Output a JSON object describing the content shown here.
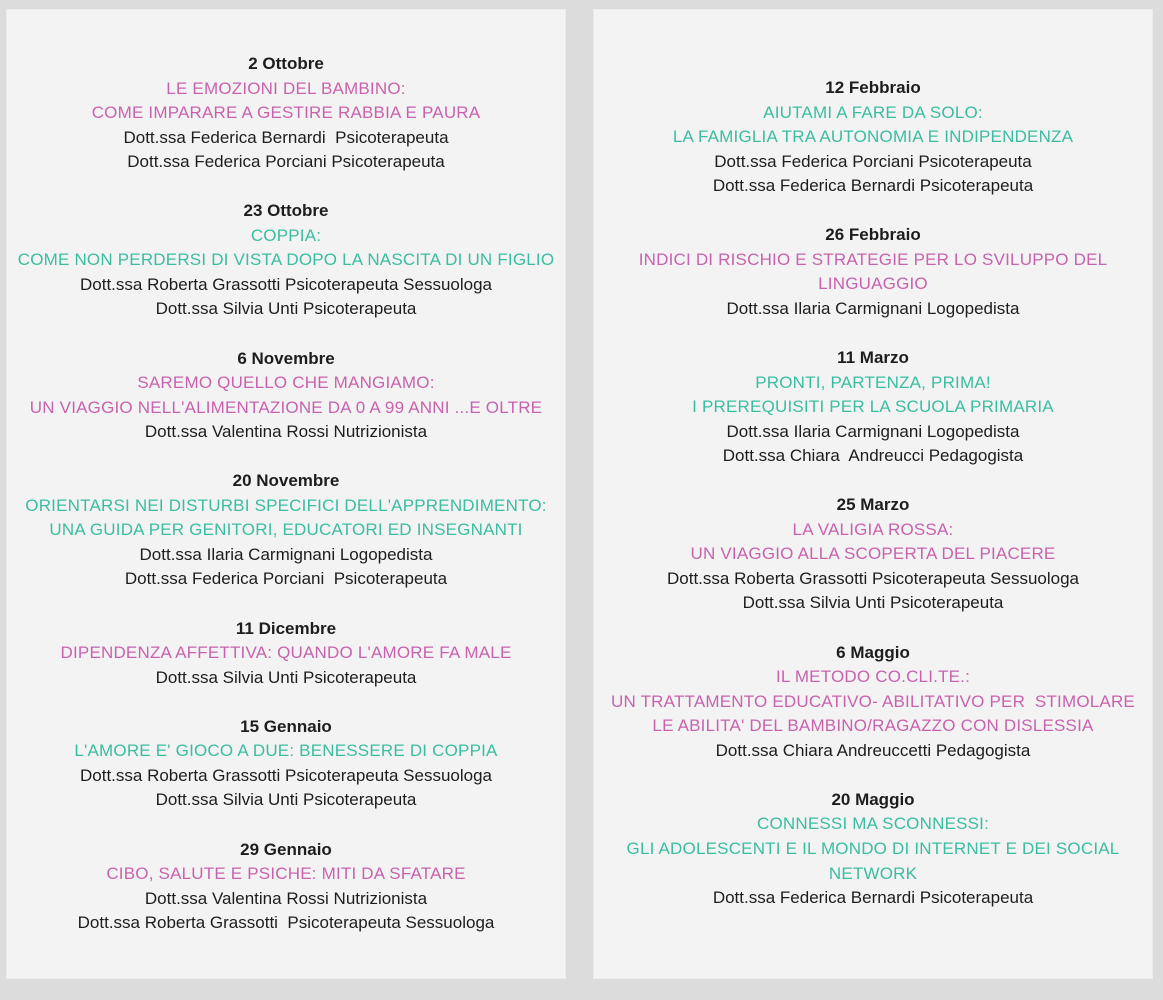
{
  "colors": {
    "page_background": "#dcdcdc",
    "card_background": "#f3f3f3",
    "pink": "#c962ae",
    "teal": "#3abda1",
    "text": "#1d1d1d"
  },
  "document": {
    "kind": "seminar-calendar-flyer",
    "columns": [
      {
        "side": "left",
        "events": [
          {
            "date": "2 Ottobre",
            "title_color": "pink",
            "title_lines": [
              "LE EMOZIONI DEL BAMBINO:",
              "COME IMPARARE A GESTIRE RABBIA E PAURA"
            ],
            "speakers": [
              "Dott.ssa Federica Bernardi  Psicoterapeuta",
              "Dott.ssa Federica Porciani Psicoterapeuta"
            ]
          },
          {
            "date": "23 Ottobre",
            "title_color": "teal",
            "title_lines": [
              "COPPIA:",
              "COME NON PERDERSI DI VISTA DOPO LA NASCITA DI UN FIGLIO"
            ],
            "speakers": [
              "Dott.ssa Roberta Grassotti Psicoterapeuta Sessuologa",
              "Dott.ssa Silvia Unti Psicoterapeuta"
            ]
          },
          {
            "date": "6 Novembre",
            "title_color": "pink",
            "title_lines": [
              "SAREMO QUELLO CHE MANGIAMO:",
              "UN VIAGGIO NELL'ALIMENTAZIONE DA 0 A 99 ANNI ...E OLTRE"
            ],
            "speakers": [
              "Dott.ssa Valentina Rossi Nutrizionista"
            ]
          },
          {
            "date": "20 Novembre",
            "title_color": "teal",
            "title_lines": [
              "ORIENTARSI NEI DISTURBI SPECIFICI DELL'APPRENDIMENTO:",
              "UNA GUIDA PER GENITORI, EDUCATORI ED INSEGNANTI"
            ],
            "speakers": [
              "Dott.ssa Ilaria Carmignani Logopedista",
              "Dott.ssa Federica Porciani  Psicoterapeuta"
            ]
          },
          {
            "date": "11 Dicembre",
            "title_color": "pink",
            "title_lines": [
              "DIPENDENZA AFFETTIVA: QUANDO L'AMORE FA MALE"
            ],
            "speakers": [
              "Dott.ssa Silvia Unti Psicoterapeuta"
            ]
          },
          {
            "date": "15 Gennaio",
            "title_color": "teal",
            "title_lines": [
              "L'AMORE E' GIOCO A DUE: BENESSERE DI COPPIA"
            ],
            "speakers": [
              "Dott.ssa Roberta Grassotti Psicoterapeuta Sessuologa",
              "Dott.ssa Silvia Unti Psicoterapeuta"
            ]
          },
          {
            "date": "29 Gennaio",
            "title_color": "pink",
            "title_lines": [
              "CIBO, SALUTE E PSICHE: MITI DA SFATARE"
            ],
            "speakers": [
              "Dott.ssa Valentina Rossi Nutrizionista",
              "Dott.ssa Roberta Grassotti  Psicoterapeuta Sessuologa"
            ]
          }
        ]
      },
      {
        "side": "right",
        "events": [
          {
            "date": "12 Febbraio",
            "title_color": "teal",
            "title_lines": [
              "AIUTAMI A FARE DA SOLO:",
              "LA FAMIGLIA TRA AUTONOMIA E INDIPENDENZA"
            ],
            "speakers": [
              "Dott.ssa Federica Porciani Psicoterapeuta",
              "Dott.ssa Federica Bernardi Psicoterapeuta"
            ]
          },
          {
            "date": "26 Febbraio",
            "title_color": "pink",
            "title_lines": [
              "INDICI DI RISCHIO E STRATEGIE PER LO SVILUPPO DEL",
              "LINGUAGGIO"
            ],
            "speakers": [
              "Dott.ssa Ilaria Carmignani Logopedista"
            ]
          },
          {
            "date": "11 Marzo",
            "title_color": "teal",
            "title_lines": [
              "PRONTI, PARTENZA, PRIMA!",
              "I PREREQUISITI PER LA SCUOLA PRIMARIA"
            ],
            "speakers": [
              "Dott.ssa Ilaria Carmignani Logopedista",
              "Dott.ssa Chiara  Andreucci Pedagogista"
            ]
          },
          {
            "date": "25 Marzo",
            "title_color": "pink",
            "title_lines": [
              "LA VALIGIA ROSSA:",
              "UN VIAGGIO ALLA SCOPERTA DEL PIACERE"
            ],
            "speakers": [
              "Dott.ssa Roberta Grassotti Psicoterapeuta Sessuologa",
              "Dott.ssa Silvia Unti Psicoterapeuta"
            ]
          },
          {
            "date": "6 Maggio",
            "title_color": "pink",
            "title_lines": [
              "IL METODO CO.CLI.TE.:",
              "UN TRATTAMENTO EDUCATIVO- ABILITATIVO PER  STIMOLARE",
              "LE ABILITA' DEL BAMBINO/RAGAZZO CON DISLESSIA"
            ],
            "speakers": [
              "Dott.ssa Chiara Andreuccetti Pedagogista"
            ]
          },
          {
            "date": "20 Maggio",
            "title_color": "teal",
            "title_lines": [
              "CONNESSI MA SCONNESSI:",
              "GLI ADOLESCENTI E IL MONDO DI INTERNET E DEI SOCIAL",
              "NETWORK"
            ],
            "speakers": [
              "Dott.ssa Federica Bernardi Psicoterapeuta"
            ]
          }
        ]
      }
    ]
  }
}
